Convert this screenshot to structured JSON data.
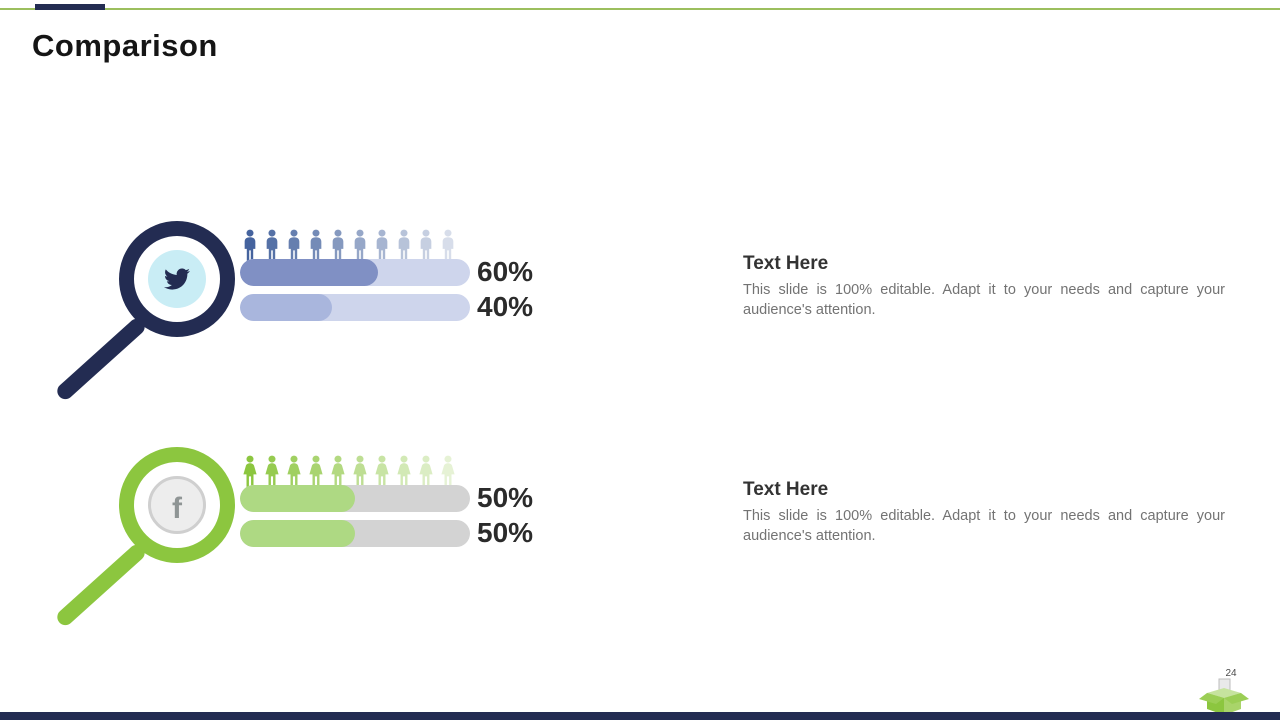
{
  "slide": {
    "title": "Comparison",
    "page_number": "24"
  },
  "groups": [
    {
      "name": "twitter",
      "people_count": 10,
      "bars": [
        {
          "label": "60%",
          "value": 60
        },
        {
          "label": "40%",
          "value": 40
        }
      ],
      "heading": "Text Here",
      "body": "This slide is 100% editable. Adapt it to your needs and capture your audience's attention."
    },
    {
      "name": "facebook",
      "facebook_letter": "f",
      "people_count": 10,
      "bars": [
        {
          "label": "50%",
          "value": 50
        },
        {
          "label": "50%",
          "value": 50
        }
      ],
      "heading": "Text Here",
      "body": "This slide is 100% editable. Adapt it to your needs and capture your audience's attention."
    }
  ],
  "colors": {
    "navy": "#232c52",
    "accent_green": "#8cc63f",
    "top_line_green": "#9cbf5e",
    "blue_bar_fill": "#8090c4",
    "blue_bar_track": "#ced5ec",
    "blue_person": "#45639e",
    "green_bar_fill": "#aed983",
    "green_bar_track": "#d3d3d3",
    "twitter_circle_bg": "#c9edf5",
    "facebook_circle_bg": "#ededed"
  }
}
